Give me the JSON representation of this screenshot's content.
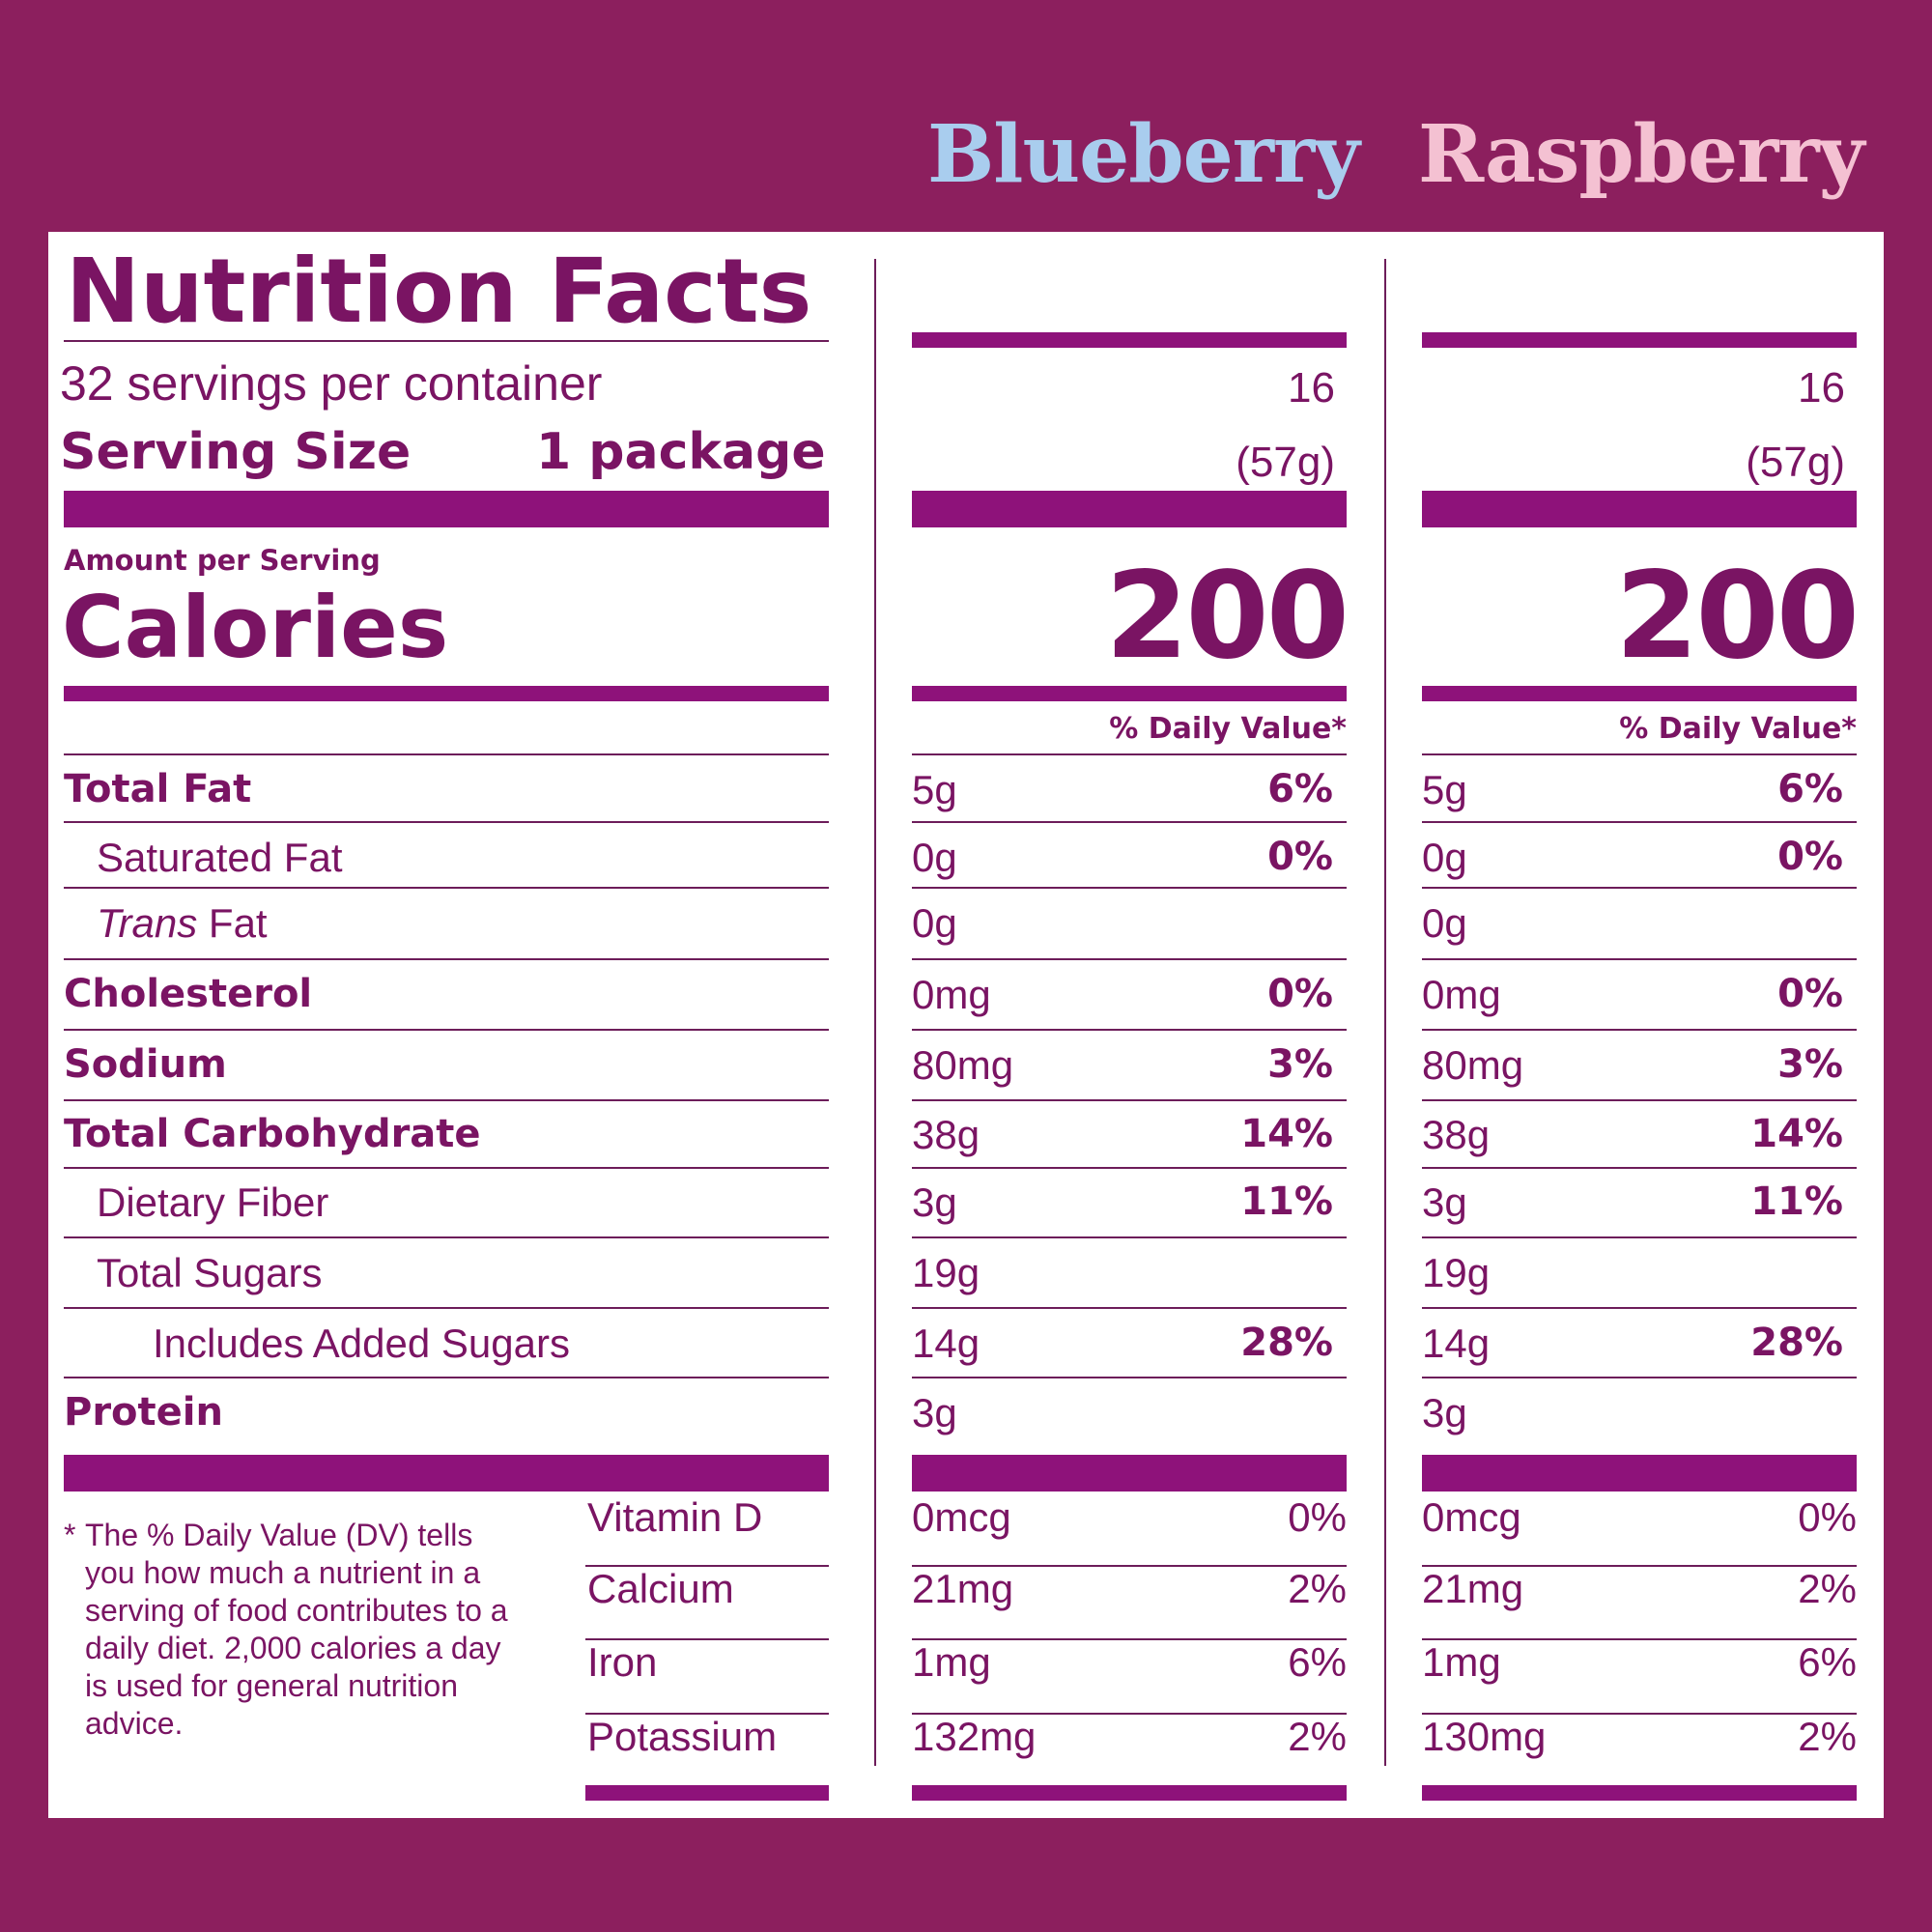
{
  "colors": {
    "background": "#8c1f5e",
    "ink": "#7a1463",
    "bar": "#8e127a",
    "flavor_a": "#a9cdee",
    "flavor_b": "#f4c1d2"
  },
  "flavors": [
    "Blueberry",
    "Raspberry"
  ],
  "label": {
    "title": "Nutrition Facts",
    "servings": "32 servings per container",
    "serving_size_label": "Serving Size",
    "serving_size_value": "1 package",
    "amount_per_serving": "Amount per Serving",
    "calories_label": "Calories",
    "daily_value_header": "% Daily Value*"
  },
  "nutrients": [
    {
      "label": "Total Fat",
      "style": "bold"
    },
    {
      "label": "Saturated Fat",
      "style": "indent"
    },
    {
      "label_prefix": "Trans",
      "label": "Fat",
      "style": "indent-italic"
    },
    {
      "label": "Cholesterol",
      "style": "bold"
    },
    {
      "label": "Sodium",
      "style": "bold"
    },
    {
      "label": "Total Carbohydrate",
      "style": "bold"
    },
    {
      "label": "Dietary Fiber",
      "style": "indent"
    },
    {
      "label": "Total Sugars",
      "style": "indent"
    },
    {
      "label": "Includes Added Sugars",
      "style": "indent2"
    },
    {
      "label": "Protein",
      "style": "bold"
    }
  ],
  "vitamins": [
    "Vitamin D",
    "Calcium",
    "Iron",
    "Potassium"
  ],
  "footnote_star": "*",
  "footnote": "The % Daily Value (DV) tells you how much a nutrient in a serving of food contributes to a daily diet. 2,000 calories a day is used for general nutrition advice.",
  "columns": [
    {
      "flavor": "Blueberry",
      "serving_count": "16",
      "serving_grams": "(57g)",
      "calories": "200",
      "daily_value_header": "% Daily Value*",
      "nutrients": [
        {
          "amount": "5g",
          "dv": "6%"
        },
        {
          "amount": "0g",
          "dv": "0%"
        },
        {
          "amount": "0g",
          "dv": ""
        },
        {
          "amount": "0mg",
          "dv": "0%"
        },
        {
          "amount": "80mg",
          "dv": "3%"
        },
        {
          "amount": "38g",
          "dv": "14%"
        },
        {
          "amount": "3g",
          "dv": "11%"
        },
        {
          "amount": "19g",
          "dv": ""
        },
        {
          "amount": "14g",
          "dv": "28%"
        },
        {
          "amount": "3g",
          "dv": ""
        }
      ],
      "vitamins": [
        {
          "amount": "0mcg",
          "dv": "0%"
        },
        {
          "amount": "21mg",
          "dv": "2%"
        },
        {
          "amount": "1mg",
          "dv": "6%"
        },
        {
          "amount": "132mg",
          "dv": "2%"
        }
      ]
    },
    {
      "flavor": "Raspberry",
      "serving_count": "16",
      "serving_grams": "(57g)",
      "calories": "200",
      "daily_value_header": "% Daily Value*",
      "nutrients": [
        {
          "amount": "5g",
          "dv": "6%"
        },
        {
          "amount": "0g",
          "dv": "0%"
        },
        {
          "amount": "0g",
          "dv": ""
        },
        {
          "amount": "0mg",
          "dv": "0%"
        },
        {
          "amount": "80mg",
          "dv": "3%"
        },
        {
          "amount": "38g",
          "dv": "14%"
        },
        {
          "amount": "3g",
          "dv": "11%"
        },
        {
          "amount": "19g",
          "dv": ""
        },
        {
          "amount": "14g",
          "dv": "28%"
        },
        {
          "amount": "3g",
          "dv": ""
        }
      ],
      "vitamins": [
        {
          "amount": "0mcg",
          "dv": "0%"
        },
        {
          "amount": "21mg",
          "dv": "2%"
        },
        {
          "amount": "1mg",
          "dv": "6%"
        },
        {
          "amount": "130mg",
          "dv": "2%"
        }
      ]
    }
  ]
}
